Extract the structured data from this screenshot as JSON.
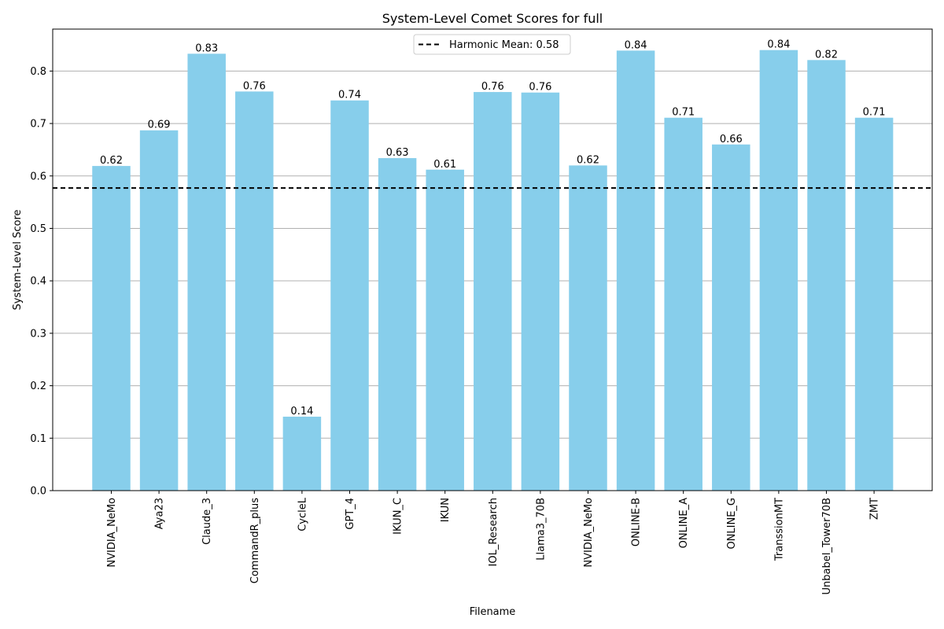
{
  "chart_data": {
    "type": "bar",
    "title": "System-Level Comet Scores for full",
    "xlabel": "Filename",
    "ylabel": "System-Level Score",
    "ylim": [
      0,
      0.88
    ],
    "yticks": [
      0.0,
      0.1,
      0.2,
      0.3,
      0.4,
      0.5,
      0.6,
      0.7,
      0.8
    ],
    "ytick_labels": [
      "0.0",
      "0.1",
      "0.2",
      "0.3",
      "0.4",
      "0.5",
      "0.6",
      "0.7",
      "0.8"
    ],
    "grid": "y",
    "bar_color": "#87CEEB",
    "categories": [
      "NVIDIA_NeMo",
      "Aya23",
      "Claude_3",
      "CommandR_plus",
      "CycleL",
      "GPT_4",
      "IKUN_C",
      "IKUN",
      "IOL_Research",
      "Llama3_70B",
      "NVIDIA_NeMo",
      "ONLINE-B",
      "ONLINE_A",
      "ONLINE_G",
      "TranssionMT",
      "Unbabel_Tower70B",
      "ZMT"
    ],
    "values": [
      0.619,
      0.687,
      0.833,
      0.761,
      0.141,
      0.744,
      0.634,
      0.612,
      0.76,
      0.759,
      0.62,
      0.839,
      0.711,
      0.66,
      0.84,
      0.821,
      0.711
    ],
    "value_labels": [
      "0.62",
      "0.69",
      "0.83",
      "0.76",
      "0.14",
      "0.74",
      "0.63",
      "0.61",
      "0.76",
      "0.76",
      "0.62",
      "0.84",
      "0.71",
      "0.66",
      "0.84",
      "0.82",
      "0.71"
    ],
    "reference_line": {
      "value": 0.577,
      "label": "Harmonic Mean: 0.58",
      "style": "dashed",
      "color": "#000000"
    },
    "legend": {
      "placement": "top-center"
    }
  }
}
